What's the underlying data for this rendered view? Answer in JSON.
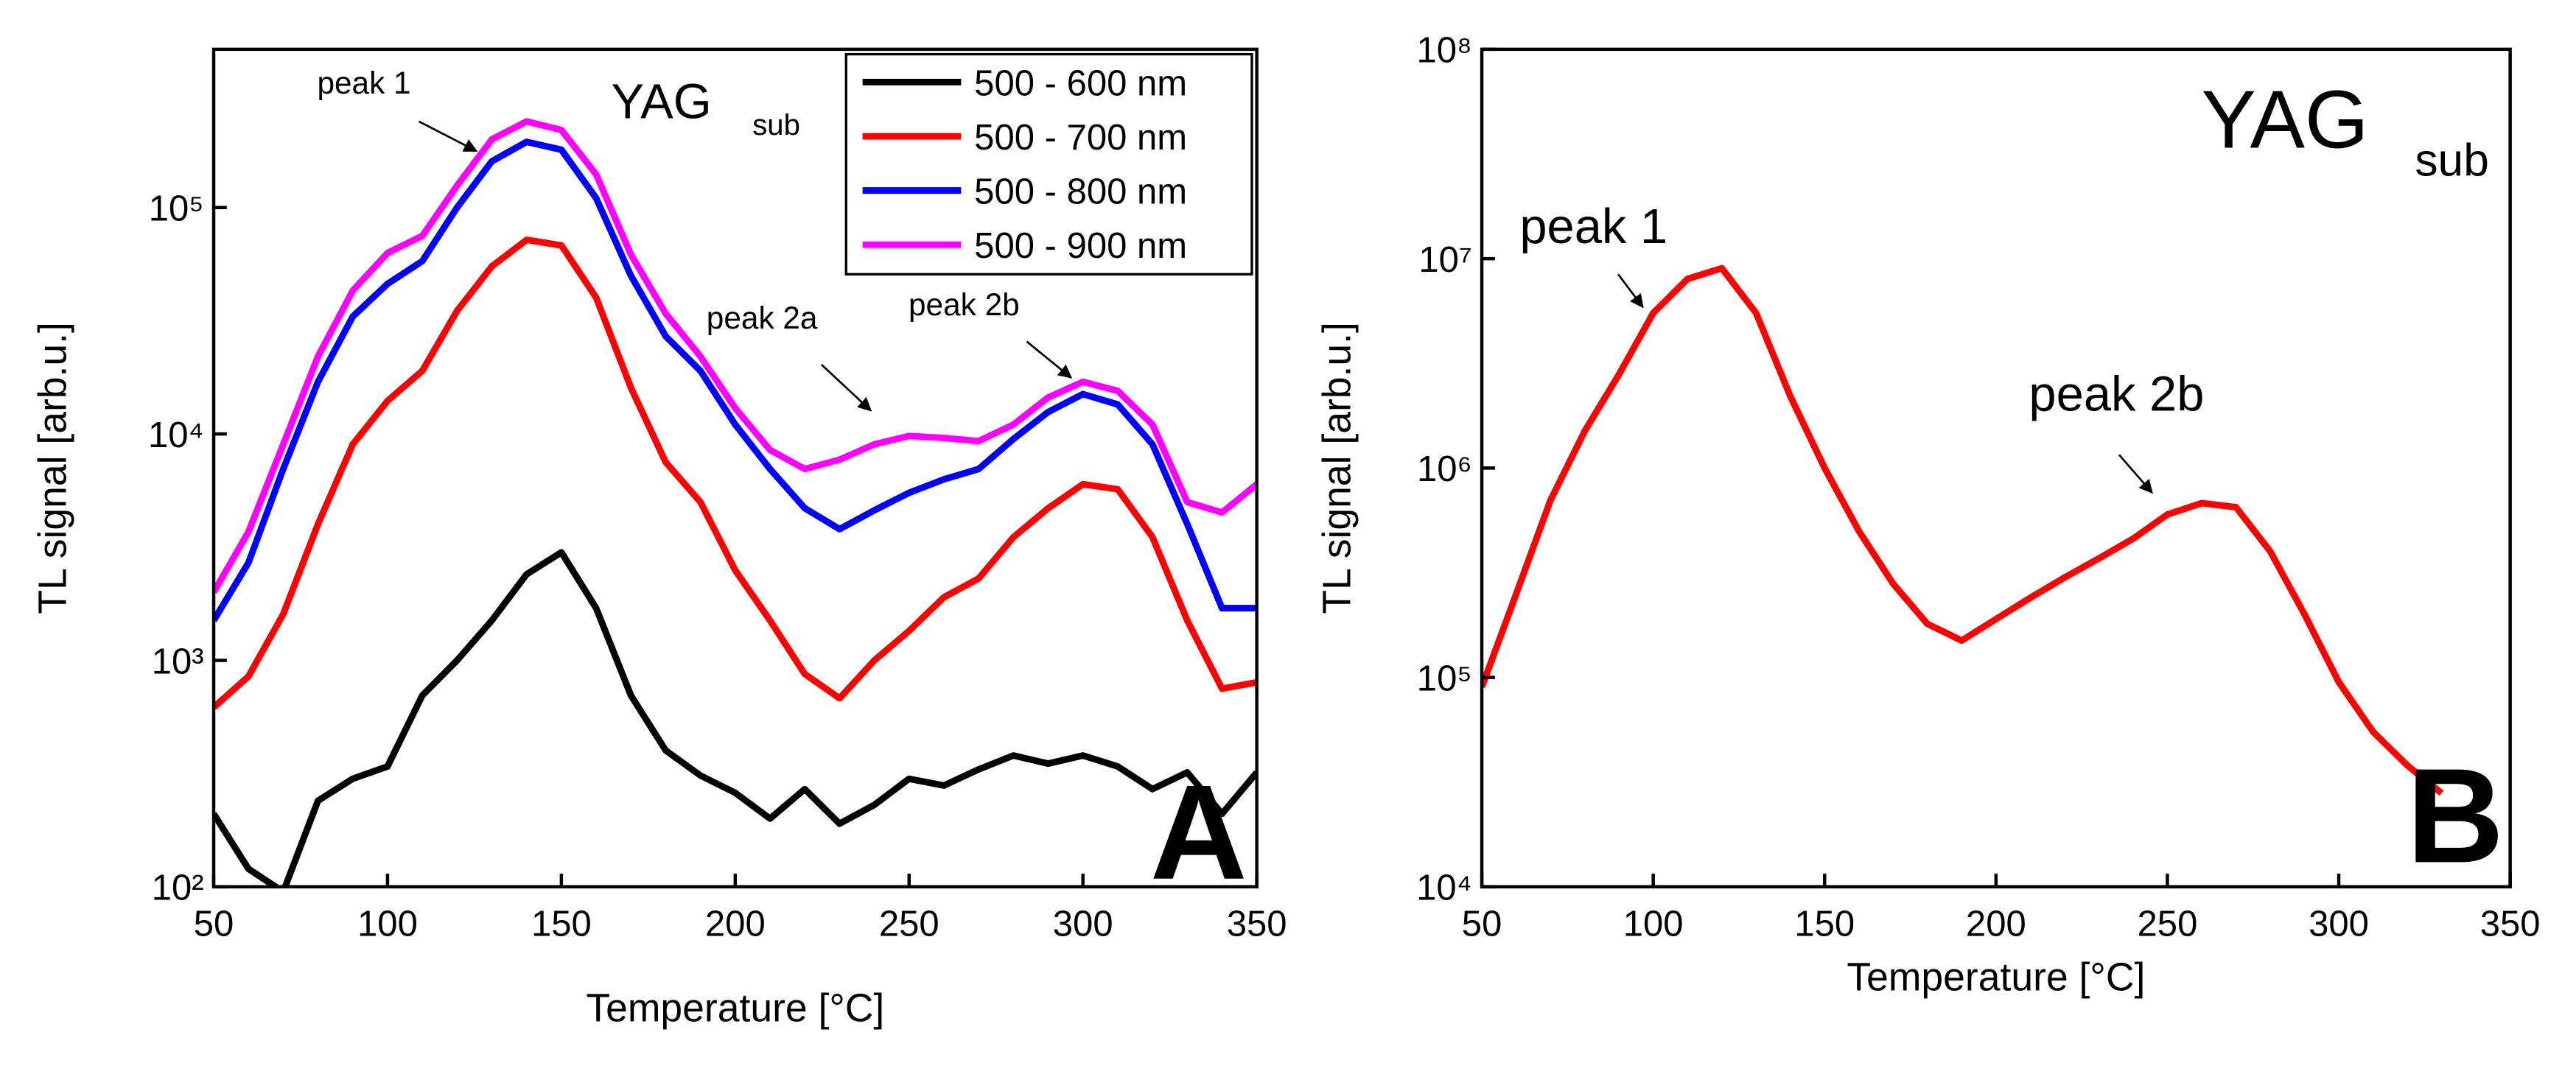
{
  "chart_data": [
    {
      "type": "line",
      "log_y": true,
      "title": "YAG",
      "title_sub": "sub",
      "panel_label": "A",
      "xlabel": "Temperature [°C]",
      "ylabel": "TL signal [arb.u.]",
      "xlim": [
        50,
        350
      ],
      "ylim": [
        100,
        500000
      ],
      "xticks": [
        50,
        100,
        150,
        200,
        250,
        300,
        350
      ],
      "yticks": [
        {
          "value": 100,
          "label": "10²"
        },
        {
          "value": 1000,
          "label": "10³"
        },
        {
          "value": 10000,
          "label": "10⁴"
        },
        {
          "value": 100000,
          "label": "10⁵"
        }
      ],
      "legend": "upper right",
      "annotations": [
        "peak 1",
        "peak 2a",
        "peak 2b"
      ],
      "x": [
        50,
        60,
        70,
        80,
        90,
        100,
        110,
        120,
        130,
        140,
        150,
        160,
        170,
        180,
        190,
        200,
        210,
        220,
        230,
        240,
        250,
        260,
        270,
        280,
        290,
        300,
        310,
        320,
        330,
        340,
        350
      ],
      "series": [
        {
          "name": "500 - 600 nm",
          "color": "#000000",
          "values": [
            210,
            120,
            95,
            240,
            300,
            340,
            700,
            1000,
            1500,
            2400,
            3000,
            1700,
            700,
            400,
            310,
            260,
            200,
            270,
            190,
            230,
            300,
            280,
            330,
            380,
            350,
            380,
            340,
            270,
            320,
            210,
            320
          ]
        },
        {
          "name": "500 - 700 nm",
          "color": "#ff0000",
          "values": [
            620,
            850,
            1600,
            4000,
            9000,
            14000,
            19000,
            35000,
            55000,
            72000,
            68000,
            40000,
            16000,
            7500,
            5000,
            2500,
            1500,
            870,
            680,
            1000,
            1350,
            1900,
            2300,
            3500,
            4700,
            6000,
            5700,
            3500,
            1500,
            750,
            800
          ]
        },
        {
          "name": "500 - 800 nm",
          "color": "#0000ff",
          "values": [
            1500,
            2700,
            7000,
            17000,
            33000,
            46000,
            58000,
            100000,
            160000,
            195000,
            180000,
            110000,
            50000,
            27000,
            19000,
            11000,
            7000,
            4700,
            3800,
            4600,
            5500,
            6300,
            7000,
            9500,
            12500,
            15000,
            13500,
            9000,
            4000,
            1700,
            1700
          ]
        },
        {
          "name": "500 - 900 nm",
          "color": "#ff00ff",
          "values": [
            2000,
            3700,
            9000,
            22000,
            43000,
            63000,
            75000,
            125000,
            200000,
            240000,
            220000,
            140000,
            62000,
            34000,
            22000,
            13000,
            8500,
            7000,
            7700,
            9000,
            9800,
            9600,
            9300,
            11000,
            14500,
            17000,
            15500,
            11000,
            5000,
            4500,
            6000
          ]
        }
      ]
    },
    {
      "type": "line",
      "log_y": true,
      "title": "YAG",
      "title_sub": "sub",
      "panel_label": "B",
      "xlabel": "Temperature [°C]",
      "ylabel": "TL signal [arb.u.]",
      "xlim": [
        50,
        350
      ],
      "ylim": [
        10000,
        100000000
      ],
      "xticks": [
        50,
        100,
        150,
        200,
        250,
        300,
        350
      ],
      "yticks": [
        {
          "value": 10000,
          "label": "10⁴"
        },
        {
          "value": 100000,
          "label": "10⁵"
        },
        {
          "value": 1000000,
          "label": "10⁶"
        },
        {
          "value": 10000000,
          "label": "10⁷"
        },
        {
          "value": 100000000,
          "label": "10⁸"
        }
      ],
      "annotations": [
        "peak 1",
        "peak 2b"
      ],
      "x": [
        50,
        60,
        70,
        80,
        90,
        100,
        110,
        120,
        130,
        140,
        150,
        160,
        170,
        180,
        190,
        200,
        210,
        220,
        230,
        240,
        250,
        260,
        270,
        280,
        290,
        300,
        310,
        320,
        330
      ],
      "series": [
        {
          "color": "#ff0000",
          "values": [
            90000,
            250000,
            700000,
            1500000,
            2800000,
            5500000,
            8000000,
            9000000,
            5500000,
            2200000,
            1000000,
            500000,
            280000,
            180000,
            150000,
            190000,
            240000,
            300000,
            370000,
            460000,
            600000,
            680000,
            650000,
            400000,
            200000,
            95000,
            55000,
            38000,
            28000
          ]
        }
      ]
    }
  ]
}
